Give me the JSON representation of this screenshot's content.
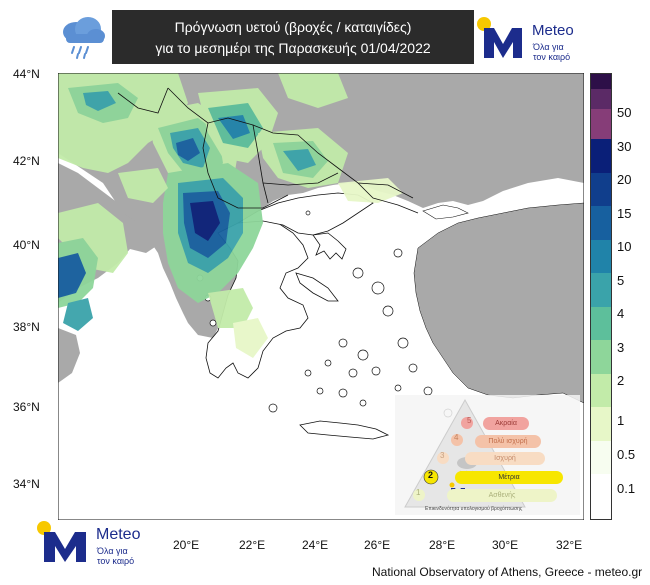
{
  "header": {
    "title_line1": "Πρόγνωση υετού (βροχές / καταιγίδες)",
    "title_line2": "για το μεσημέρι της Παρασκευής 01/04/2022"
  },
  "brand": {
    "name": "Meteo",
    "slogan_line1": "Όλα για",
    "slogan_line2": "τον καιρό",
    "color_dark": "#1c2c8c",
    "color_sun": "#f7c800"
  },
  "map": {
    "lat_labels": [
      "44°N",
      "42°N",
      "40°N",
      "38°N",
      "36°N",
      "34°N"
    ],
    "lon_labels": [
      "20°E",
      "22°E",
      "24°E",
      "26°E",
      "28°E",
      "30°E",
      "32°E"
    ]
  },
  "colorbar": {
    "labels": [
      "50",
      "30",
      "20",
      "15",
      "10",
      "5",
      "4",
      "3",
      "2",
      "1",
      "0.5",
      "0.1"
    ],
    "colors": [
      "#2d0f48",
      "#5b2a66",
      "#863d78",
      "#0a1f78",
      "#103e8c",
      "#17609f",
      "#2083a9",
      "#3aa3aa",
      "#5dbf9b",
      "#8ed69a",
      "#c2eba9",
      "#e7f7c8",
      "#f7fdf0",
      "#ffffff"
    ]
  },
  "inset": {
    "levels": [
      {
        "num": "5",
        "label": "Ακραία"
      },
      {
        "num": "4",
        "label": "Πολύ ισχυρή"
      },
      {
        "num": "3",
        "label": "Ισχυρή"
      },
      {
        "num": "2",
        "label": "Μέτρια"
      },
      {
        "num": "1",
        "label": "Ασθενής"
      }
    ],
    "caption": "Επικινδυνότητα υπολογισμού βροχόπτωσης"
  },
  "footer": {
    "credit": "National Observatory of Athens, Greece - meteo.gr"
  }
}
